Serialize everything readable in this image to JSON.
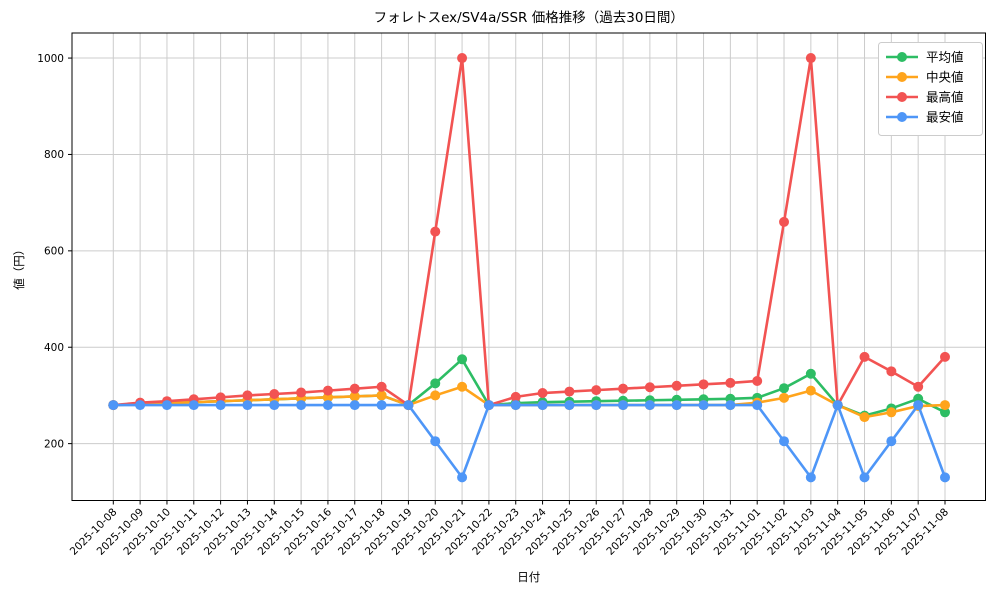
{
  "chart_data": {
    "type": "line",
    "title": "フォレトスex/SV4a/SSR 価格推移（過去30日間）",
    "xlabel": "日付",
    "ylabel": "値（円）",
    "grid": true,
    "legend_position": "upper right",
    "ylim": [
      82,
      1052
    ],
    "yticks": [
      200,
      400,
      600,
      800,
      1000
    ],
    "x": [
      "2025-10-08",
      "2025-10-09",
      "2025-10-10",
      "2025-10-11",
      "2025-10-12",
      "2025-10-13",
      "2025-10-14",
      "2025-10-15",
      "2025-10-16",
      "2025-10-17",
      "2025-10-18",
      "2025-10-19",
      "2025-10-20",
      "2025-10-21",
      "2025-10-22",
      "2025-10-23",
      "2025-10-24",
      "2025-10-25",
      "2025-10-26",
      "2025-10-27",
      "2025-10-28",
      "2025-10-29",
      "2025-10-30",
      "2025-10-31",
      "2025-11-01",
      "2025-11-02",
      "2025-11-03",
      "2025-11-04",
      "2025-11-05",
      "2025-11-06",
      "2025-11-07",
      "2025-11-08"
    ],
    "series": [
      {
        "id": "average",
        "name": "平均値",
        "color": "#2dbd64",
        "values": [
          280,
          282,
          284,
          286,
          288,
          290,
          292,
          294,
          296,
          298,
          300,
          280,
          325,
          375,
          280,
          284,
          286,
          287,
          288,
          289,
          290,
          291,
          292,
          293,
          295,
          315,
          345,
          280,
          258,
          273,
          293,
          265
        ]
      },
      {
        "id": "median",
        "name": "中央値",
        "color": "#ffa41c",
        "values": [
          280,
          282,
          284,
          286,
          288,
          290,
          292,
          294,
          296,
          298,
          300,
          280,
          300,
          318,
          280,
          280,
          280,
          280,
          280,
          280,
          280,
          280,
          280,
          280,
          285,
          295,
          310,
          280,
          255,
          265,
          278,
          280
        ]
      },
      {
        "id": "max",
        "name": "最高値",
        "color": "#f25352",
        "values": [
          280,
          285,
          288,
          292,
          296,
          300,
          303,
          306,
          310,
          314,
          318,
          280,
          640,
          1000,
          280,
          297,
          305,
          308,
          311,
          314,
          317,
          320,
          323,
          326,
          330,
          660,
          1000,
          280,
          380,
          350,
          318,
          380
        ]
      },
      {
        "id": "min",
        "name": "最安値",
        "color": "#4e96f7",
        "values": [
          280,
          280,
          280,
          280,
          280,
          280,
          280,
          280,
          280,
          280,
          280,
          280,
          205,
          130,
          280,
          280,
          280,
          280,
          280,
          280,
          280,
          280,
          280,
          280,
          280,
          205,
          130,
          280,
          130,
          205,
          280,
          130
        ]
      }
    ],
    "colors": {
      "grid": "#cccccc",
      "spine": "#000000",
      "legend_border": "#cccccc",
      "background": "#ffffff"
    }
  }
}
